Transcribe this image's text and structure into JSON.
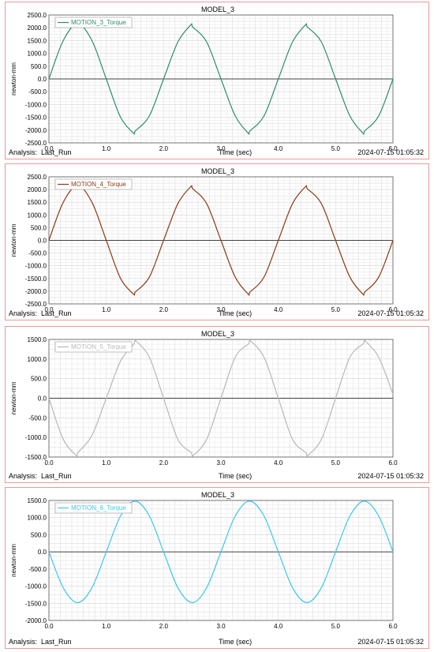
{
  "analysis_label": "Analysis:",
  "analysis_run": "Last_Run",
  "timestamp": "2024-07-15 01:05:32",
  "chart_data": [
    {
      "type": "line",
      "title": "MODEL_3",
      "xlabel": "Time (sec)",
      "ylabel": "newton-mm",
      "xlim": [
        0,
        6
      ],
      "ylim": [
        -2500,
        2500
      ],
      "yticks": [
        2500,
        2000,
        1500,
        1000,
        500,
        0,
        -500,
        -1000,
        -1500,
        -2000,
        -2500
      ],
      "ytick_labels": [
        "2500.0",
        "2000.0",
        "1500.0",
        "1000.0",
        "500.0",
        "0.0",
        "-500.0",
        "-1000.0",
        "-1500.0",
        "-2000.0",
        "-2500.0"
      ],
      "xticks": [
        0,
        1,
        2,
        3,
        4,
        5,
        6
      ],
      "xtick_labels": [
        "0.0",
        "1.0",
        "2.0",
        "3.0",
        "4.0",
        "5.0",
        "6.0"
      ],
      "grid": true,
      "legend_position": "top-left",
      "series": [
        {
          "name": "MOTION_3_Torque",
          "color": "#2e8b6e",
          "x": [
            0,
            0.25,
            0.5,
            0.75,
            1,
            1.25,
            1.49,
            1.5,
            1.75,
            2,
            2.25,
            2.49,
            2.5,
            2.75,
            3,
            3.25,
            3.49,
            3.5,
            3.75,
            4,
            4.25,
            4.49,
            4.5,
            4.75,
            5,
            5.25,
            5.49,
            5.5,
            5.75,
            6
          ],
          "y": [
            0,
            1500,
            2150,
            1500,
            0,
            -1500,
            -2150,
            -2050,
            -1450,
            0,
            1450,
            2150,
            2050,
            1450,
            0,
            -1450,
            -2150,
            -2050,
            -1450,
            0,
            1450,
            2150,
            2050,
            1450,
            0,
            -1450,
            -2150,
            -2050,
            -1450,
            0
          ]
        }
      ]
    },
    {
      "type": "line",
      "title": "MODEL_3",
      "xlabel": "Time (sec)",
      "ylabel": "newton-mm",
      "xlim": [
        0,
        6
      ],
      "ylim": [
        -2500,
        2500
      ],
      "yticks": [
        2500,
        2000,
        1500,
        1000,
        500,
        0,
        -500,
        -1000,
        -1500,
        -2000,
        -2500
      ],
      "ytick_labels": [
        "2500.0",
        "2000.0",
        "1500.0",
        "1000.0",
        "500.0",
        "0.0",
        "-500.0",
        "-1000.0",
        "-1500.0",
        "-2000.0",
        "-2500.0"
      ],
      "xticks": [
        0,
        1,
        2,
        3,
        4,
        5,
        6
      ],
      "xtick_labels": [
        "0.0",
        "1.0",
        "2.0",
        "3.0",
        "4.0",
        "5.0",
        "6.0"
      ],
      "grid": true,
      "legend_position": "top-left",
      "series": [
        {
          "name": "MOTION_4_Torque",
          "color": "#8b3a12",
          "x": [
            0,
            0.25,
            0.5,
            0.75,
            1,
            1.25,
            1.49,
            1.5,
            1.75,
            2,
            2.25,
            2.49,
            2.5,
            2.75,
            3,
            3.25,
            3.49,
            3.5,
            3.75,
            4,
            4.25,
            4.49,
            4.5,
            4.75,
            5,
            5.25,
            5.49,
            5.5,
            5.75,
            6
          ],
          "y": [
            0,
            1500,
            2150,
            1500,
            0,
            -1500,
            -2150,
            -2050,
            -1450,
            0,
            1450,
            2150,
            2050,
            1450,
            0,
            -1450,
            -2150,
            -2050,
            -1450,
            0,
            1450,
            2150,
            2050,
            1450,
            0,
            -1450,
            -2150,
            -2050,
            -1450,
            0
          ]
        }
      ]
    },
    {
      "type": "line",
      "title": "MODEL_3",
      "xlabel": "Time (sec)",
      "ylabel": "newton-mm",
      "xlim": [
        0,
        6
      ],
      "ylim": [
        -1500,
        1500
      ],
      "yticks": [
        1500,
        1000,
        500,
        0,
        -500,
        -1000,
        -1500
      ],
      "ytick_labels": [
        "1500.0",
        "1000.0",
        "500.0",
        "0.0",
        "-500.0",
        "-1000.0",
        "-1500.0"
      ],
      "xticks": [
        0,
        1,
        2,
        3,
        4,
        5,
        6
      ],
      "xtick_labels": [
        "0.0",
        "1.0",
        "2.0",
        "3.0",
        "4.0",
        "5.0",
        "6.0"
      ],
      "grid": true,
      "legend_position": "top-left",
      "series": [
        {
          "name": "MOTION_5_Torque",
          "color": "#b8b8b8",
          "x": [
            0,
            0.25,
            0.49,
            0.5,
            0.75,
            1,
            1.25,
            1.49,
            1.5,
            1.75,
            2,
            2.25,
            2.49,
            2.5,
            2.75,
            3,
            3.25,
            3.49,
            3.5,
            3.75,
            4,
            4.25,
            4.49,
            4.5,
            4.75,
            5,
            5.25,
            5.49,
            5.5,
            5.75,
            6
          ],
          "y": [
            0,
            -1050,
            -1480,
            -1400,
            -950,
            0,
            950,
            1400,
            1480,
            1050,
            0,
            -1050,
            -1400,
            -1480,
            -1050,
            0,
            1050,
            1400,
            1480,
            1050,
            0,
            -1050,
            -1400,
            -1480,
            -1050,
            0,
            1050,
            1400,
            1480,
            1050,
            100
          ]
        }
      ]
    },
    {
      "type": "line",
      "title": "MODEL_3",
      "xlabel": "Time (sec)",
      "ylabel": "newton-mm",
      "xlim": [
        0,
        6
      ],
      "ylim": [
        -2000,
        1500
      ],
      "yticks": [
        1500,
        1000,
        500,
        0,
        -500,
        -1000,
        -1500,
        -2000
      ],
      "ytick_labels": [
        "1500.0",
        "1000.0",
        "500.0",
        "0.0",
        "-500.0",
        "-1000.0",
        "-1500.0",
        "-2000.0"
      ],
      "xticks": [
        0,
        1,
        2,
        3,
        4,
        5,
        6
      ],
      "xtick_labels": [
        "0.0",
        "1.0",
        "2.0",
        "3.0",
        "4.0",
        "5.0",
        "6.0"
      ],
      "grid": true,
      "legend_position": "top-left",
      "series": [
        {
          "name": "MOTION_6_Torque",
          "color": "#3cc6ef",
          "x": [
            0,
            0.25,
            0.5,
            0.75,
            1,
            1.25,
            1.5,
            1.75,
            2,
            2.25,
            2.5,
            2.75,
            3,
            3.25,
            3.5,
            3.75,
            4,
            4.25,
            4.5,
            4.75,
            5,
            5.25,
            5.5,
            5.75,
            6
          ],
          "y": [
            0,
            -1050,
            -1480,
            -1050,
            0,
            1050,
            1480,
            1050,
            0,
            -1050,
            -1480,
            -1050,
            0,
            1050,
            1480,
            1050,
            0,
            -1050,
            -1480,
            -1050,
            0,
            1050,
            1480,
            1050,
            0
          ]
        }
      ]
    }
  ]
}
